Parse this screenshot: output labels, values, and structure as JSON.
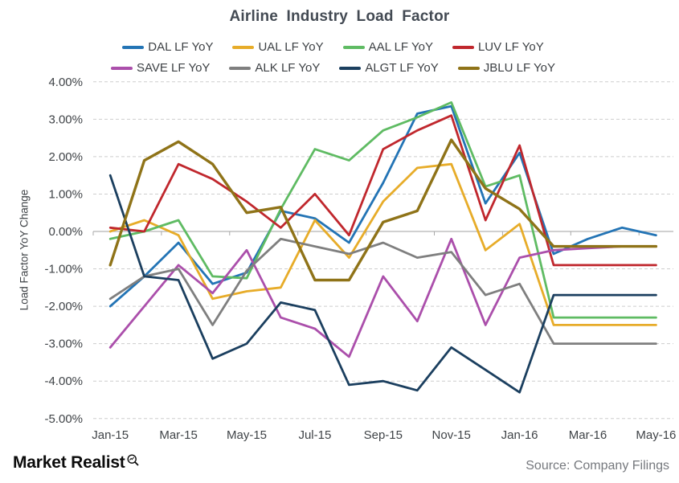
{
  "title": "Airline Industry Load Factor",
  "logo": {
    "text": "Market Realist",
    "icon": "magnifier-with-trend-icon"
  },
  "source": "Source: Company Filings",
  "chart_data": {
    "type": "line",
    "title": "Airline Industry Load Factor",
    "ylabel": "Load Factor YoY Change",
    "ylim": [
      -5,
      4
    ],
    "yticks": [
      4,
      3,
      2,
      1,
      0,
      -1,
      -2,
      -3,
      -4,
      -5
    ],
    "ytick_labels": [
      "4.00%",
      "3.00%",
      "2.00%",
      "1.00%",
      "0.00%",
      "-1.00%",
      "-2.00%",
      "-3.00%",
      "-4.00%",
      "-5.00%"
    ],
    "grid": "horizontal-dashed",
    "zero_line": "solid",
    "legend_position": "top-two-rows",
    "categories": [
      "Jan-15",
      "Feb-15",
      "Mar-15",
      "Apr-15",
      "May-15",
      "Jun-15",
      "Jul-15",
      "Aug-15",
      "Sep-15",
      "Oct-15",
      "Nov-15",
      "Dec-15",
      "Jan-16",
      "Feb-16",
      "Mar-16",
      "Apr-16",
      "May-16"
    ],
    "x_tick_labels": [
      "Jan-15",
      "Mar-15",
      "May-15",
      "Jul-15",
      "Sep-15",
      "Nov-15",
      "Jan-16",
      "Mar-16",
      "May-16"
    ],
    "series": [
      {
        "name": "DAL LF YoY",
        "color": "#2374b5",
        "values": [
          -2.0,
          -1.2,
          -0.3,
          -1.4,
          -1.1,
          0.55,
          0.35,
          -0.3,
          1.3,
          3.15,
          3.35,
          0.75,
          2.1,
          -0.6,
          -0.2,
          0.1,
          -0.1
        ]
      },
      {
        "name": "UAL LF YoY",
        "color": "#e7ac29",
        "values": [
          0.0,
          0.3,
          -0.1,
          -1.8,
          -1.6,
          -1.5,
          0.3,
          -0.7,
          0.8,
          1.7,
          1.8,
          -0.5,
          0.2,
          -2.5,
          -2.5,
          -2.5,
          -2.5
        ]
      },
      {
        "name": "AAL LF YoY",
        "color": "#5fbb63",
        "values": [
          -0.2,
          0.0,
          0.3,
          -1.2,
          -1.25,
          0.6,
          2.2,
          1.9,
          2.7,
          3.05,
          3.45,
          1.2,
          1.5,
          -2.3,
          -2.3,
          -2.3,
          -2.3
        ]
      },
      {
        "name": "LUV LF YoY",
        "color": "#c0272d",
        "values": [
          0.1,
          0.0,
          1.8,
          1.4,
          0.8,
          0.1,
          1.0,
          -0.1,
          2.2,
          2.7,
          3.1,
          0.3,
          2.3,
          -0.9,
          -0.9,
          -0.9,
          -0.9
        ]
      },
      {
        "name": "SAVE LF YoY",
        "color": "#ab4fab",
        "values": [
          -3.1,
          -2.0,
          -0.9,
          -1.65,
          -0.5,
          -2.3,
          -2.6,
          -3.35,
          -1.2,
          -2.4,
          -0.2,
          -2.5,
          -0.7,
          -0.5,
          -0.45,
          -0.4,
          -0.4
        ]
      },
      {
        "name": "ALK LF YoY",
        "color": "#7f7f7f",
        "values": [
          -1.8,
          -1.2,
          -1.0,
          -2.5,
          -1.05,
          -0.2,
          -0.4,
          -0.6,
          -0.3,
          -0.7,
          -0.55,
          -1.7,
          -1.4,
          -3.0,
          -3.0,
          -3.0,
          -3.0
        ]
      },
      {
        "name": "ALGT LF YoY",
        "color": "#1b3f5f",
        "values": [
          1.5,
          -1.2,
          -1.3,
          -3.4,
          -3.0,
          -1.9,
          -2.1,
          -4.1,
          -4.0,
          -4.25,
          -3.1,
          -3.7,
          -4.3,
          -1.7,
          -1.7,
          -1.7,
          -1.7
        ]
      },
      {
        "name": "JBLU LF YoY",
        "color": "#8f7318",
        "values": [
          -0.9,
          1.9,
          2.4,
          1.8,
          0.5,
          0.65,
          -1.3,
          -1.3,
          0.25,
          0.55,
          2.45,
          1.15,
          0.6,
          -0.4,
          -0.4,
          -0.4,
          -0.4
        ]
      }
    ]
  }
}
